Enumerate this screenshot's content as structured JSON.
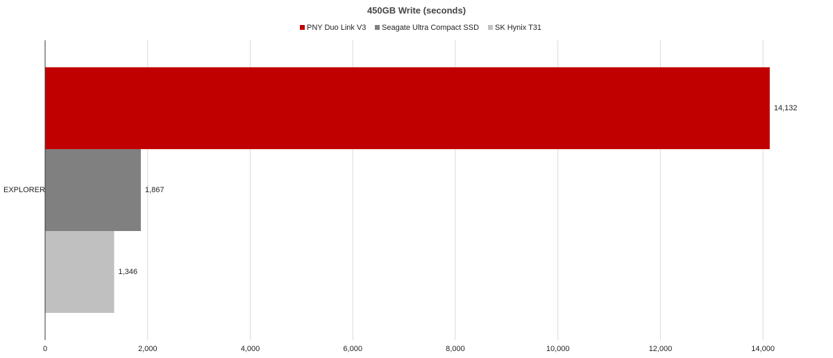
{
  "chart_data": {
    "type": "bar",
    "orientation": "horizontal",
    "title": "450GB Write (seconds)",
    "categories": [
      "EXPLORER"
    ],
    "series": [
      {
        "name": "PNY Duo Link V3",
        "color": "#c00000",
        "values": [
          14132
        ],
        "value_labels": [
          "14,132"
        ]
      },
      {
        "name": "Seagate Ultra Compact SSD",
        "color": "#808080",
        "values": [
          1867
        ],
        "value_labels": [
          "1,867"
        ]
      },
      {
        "name": "SK Hynix  T31",
        "color": "#c0c0c0",
        "values": [
          1346
        ],
        "value_labels": [
          "1,346"
        ]
      }
    ],
    "xlim": [
      0,
      15000
    ],
    "xticks": [
      0,
      {
        "value": 2000,
        "label": "2,000"
      },
      {
        "value": 4000,
        "label": "4,000"
      },
      {
        "value": 6000,
        "label": "6,000"
      },
      {
        "value": 8000,
        "label": "8,000"
      },
      {
        "value": 10000,
        "label": "10,000"
      },
      {
        "value": 12000,
        "label": "12,000"
      },
      {
        "value": 14000,
        "label": "14,000"
      }
    ],
    "grid": true
  }
}
